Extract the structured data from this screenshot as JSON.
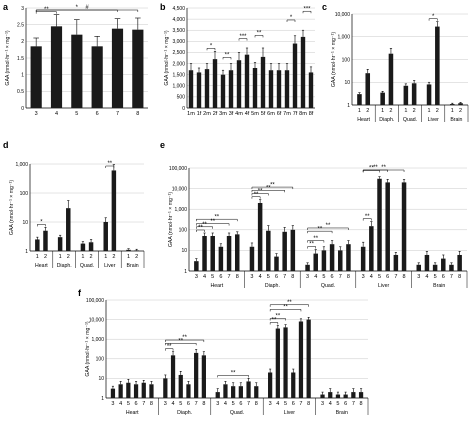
{
  "chart_data": [
    {
      "panel": "a",
      "type": "bar",
      "ylabel": "GAA (nmol·hr⁻¹ × mg⁻¹)",
      "scale": "linear",
      "ylim": [
        0,
        3
      ],
      "yticks": [
        "0",
        "0.5",
        "1",
        "1.5",
        "2",
        "2.5",
        "3"
      ],
      "categories": [
        "3",
        "4",
        "5",
        "6",
        "7",
        "8"
      ],
      "values": [
        1.85,
        2.45,
        2.2,
        1.85,
        2.38,
        2.35
      ],
      "errors": [
        0.25,
        0.35,
        0.45,
        0.3,
        0.3,
        0.35
      ],
      "annotations": [
        {
          "from": "3",
          "to": "4",
          "label": "**"
        },
        {
          "from": "3",
          "to": "7",
          "label": "*"
        },
        {
          "from": "3",
          "to": "8",
          "label": "#"
        }
      ]
    },
    {
      "panel": "b",
      "type": "bar",
      "ylabel": "GAA (nmol·hr⁻¹ × mg⁻¹)",
      "scale": "linear",
      "ylim": [
        0,
        4500
      ],
      "yticks": [
        "0",
        "500",
        "1,000",
        "1,500",
        "2,000",
        "2,500",
        "3,000",
        "3,500",
        "4,000",
        "4,500"
      ],
      "categories": [
        "1m",
        "1f",
        "2m",
        "2f",
        "3m",
        "3f",
        "4m",
        "4f",
        "5m",
        "5f",
        "6m",
        "6f",
        "7m",
        "7f",
        "8m",
        "8f"
      ],
      "values": [
        1700,
        1600,
        1750,
        2200,
        1500,
        1700,
        2150,
        2400,
        1800,
        2300,
        1700,
        1700,
        1700,
        2900,
        3200,
        1600
      ],
      "errors": [
        300,
        200,
        250,
        350,
        200,
        300,
        350,
        300,
        250,
        400,
        300,
        300,
        300,
        350,
        300,
        250
      ],
      "annotations": [
        {
          "from": "2m",
          "to": "2f",
          "label": "*"
        },
        {
          "from": "3m",
          "to": "3f",
          "label": "**"
        },
        {
          "from": "4m",
          "to": "4f",
          "label": "***"
        },
        {
          "from": "5m",
          "to": "5f",
          "label": "**"
        },
        {
          "from": "7m",
          "to": "7f",
          "label": "*"
        },
        {
          "from": "8m",
          "to": "8f",
          "label": "***"
        }
      ]
    },
    {
      "panel": "c",
      "type": "bar",
      "ylabel": "GAA (nmol·hr⁻¹ × mg⁻¹)",
      "scale": "log",
      "ylim": [
        1,
        10000
      ],
      "yticks": [
        "1",
        "10",
        "100",
        "1,000",
        "10,000"
      ],
      "groups": [
        "Heart",
        "Diaph.",
        "Quad.",
        "Liver",
        "Brain"
      ],
      "categories": [
        "1",
        "2"
      ],
      "values": [
        [
          3,
          25
        ],
        [
          3.5,
          180
        ],
        [
          7,
          9
        ],
        [
          8,
          2800
        ],
        [
          1.1,
          1.2
        ]
      ],
      "errors": [
        [
          0.5,
          12
        ],
        [
          0.5,
          130
        ],
        [
          1.5,
          3
        ],
        [
          2,
          1800
        ],
        [
          0.1,
          0.1
        ]
      ],
      "annotations": [
        {
          "group": "Liver",
          "from": "1",
          "to": "2",
          "label": "*"
        }
      ]
    },
    {
      "panel": "d",
      "type": "bar",
      "ylabel": "GAA (nmol·hr⁻¹ × mg⁻¹)",
      "scale": "log",
      "ylim": [
        1,
        1000
      ],
      "yticks": [
        "1",
        "10",
        "100",
        "1,000"
      ],
      "groups": [
        "Heart",
        "Diaph.",
        "Quad.",
        "Liver",
        "Brain"
      ],
      "categories": [
        "1",
        "2"
      ],
      "values": [
        [
          2.5,
          5
        ],
        [
          3,
          30
        ],
        [
          1.8,
          2
        ],
        [
          10,
          600
        ],
        [
          1.1,
          1.05
        ]
      ],
      "errors": [
        [
          0.5,
          1.5
        ],
        [
          0.5,
          25
        ],
        [
          0.3,
          0.5
        ],
        [
          4,
          350
        ],
        [
          0.1,
          0.1
        ]
      ],
      "annotations": [
        {
          "group": "Heart",
          "from": "1",
          "to": "2",
          "label": "*"
        },
        {
          "group": "Liver",
          "from": "1",
          "to": "2",
          "label": "**"
        }
      ]
    },
    {
      "panel": "e",
      "type": "bar",
      "ylabel": "GAA (nmol·hr⁻¹ × mg⁻¹)",
      "scale": "log",
      "ylim": [
        1,
        100000
      ],
      "yticks": [
        "1",
        "10",
        "100",
        "1,000",
        "10,000",
        "100,000"
      ],
      "groups": [
        "Heart",
        "Diaph.",
        "Quad.",
        "Liver",
        "Brain"
      ],
      "categories": [
        "3",
        "4",
        "5",
        "6",
        "7",
        "8"
      ],
      "values": [
        [
          3,
          50,
          50,
          15,
          50,
          60
        ],
        [
          15,
          2000,
          90,
          5,
          80,
          100
        ],
        [
          2,
          7,
          10,
          20,
          10,
          20
        ],
        [
          15,
          150,
          30000,
          20000,
          6,
          20000
        ],
        [
          2,
          6,
          2,
          4,
          2,
          6
        ]
      ],
      "errors": [
        [
          1,
          20,
          20,
          6,
          20,
          20
        ],
        [
          8,
          900,
          70,
          2,
          50,
          60
        ],
        [
          0.5,
          4,
          5,
          10,
          5,
          10
        ],
        [
          10,
          100,
          8000,
          8000,
          2,
          8000
        ],
        [
          0.5,
          3,
          0.5,
          2,
          0.5,
          3
        ]
      ],
      "annotations": [
        {
          "group": "Heart",
          "from": "3",
          "to": "4",
          "label": "**"
        },
        {
          "group": "Heart",
          "from": "3",
          "to": "5",
          "label": "**"
        },
        {
          "group": "Heart",
          "from": "3",
          "to": "7",
          "label": "**"
        },
        {
          "group": "Heart",
          "from": "3",
          "to": "8",
          "label": "**"
        },
        {
          "group": "Diaph.",
          "from": "3",
          "to": "4",
          "label": "**"
        },
        {
          "group": "Diaph.",
          "from": "3",
          "to": "5",
          "label": "**"
        },
        {
          "group": "Diaph.",
          "from": "3",
          "to": "7",
          "label": "**"
        },
        {
          "group": "Diaph.",
          "from": "3",
          "to": "8",
          "label": "**"
        },
        {
          "group": "Quad.",
          "from": "3",
          "to": "4",
          "label": "**"
        },
        {
          "group": "Quad.",
          "from": "3",
          "to": "5",
          "label": "**"
        },
        {
          "group": "Quad.",
          "from": "3",
          "to": "6",
          "label": "**"
        },
        {
          "group": "Quad.",
          "from": "3",
          "to": "8",
          "label": "**"
        },
        {
          "group": "Liver",
          "from": "3",
          "to": "4",
          "label": "**"
        },
        {
          "group": "Liver",
          "from": "3",
          "to": "5",
          "label": "**"
        },
        {
          "group": "Liver",
          "from": "3",
          "to": "6",
          "label": "**"
        },
        {
          "group": "Liver",
          "from": "3",
          "to": "8",
          "label": "**"
        }
      ]
    },
    {
      "panel": "f",
      "type": "bar",
      "ylabel": "GAA (nmol·hr⁻¹ × mg⁻¹)",
      "scale": "log",
      "ylim": [
        1,
        100000
      ],
      "yticks": [
        "1",
        "10",
        "100",
        "1,000",
        "10,000",
        "100,000"
      ],
      "groups": [
        "Heart",
        "Diaph.",
        "Quad.",
        "Liver",
        "Brain"
      ],
      "categories": [
        "3",
        "4",
        "5",
        "6",
        "7",
        "8"
      ],
      "values": [
        [
          3,
          5,
          6,
          5,
          6,
          5
        ],
        [
          10,
          150,
          15,
          5,
          200,
          150
        ],
        [
          2,
          5,
          4,
          4,
          7,
          4
        ],
        [
          20,
          3500,
          4000,
          20,
          8000,
          10000
        ],
        [
          1.5,
          2,
          1.5,
          1.5,
          2,
          2
        ]
      ],
      "errors": [
        [
          1,
          2,
          3,
          2,
          2,
          2
        ],
        [
          5,
          80,
          8,
          2,
          100,
          80
        ],
        [
          1,
          2,
          2,
          2,
          3,
          2
        ],
        [
          10,
          1500,
          1500,
          10,
          3000,
          3000
        ],
        [
          0.5,
          1,
          0.5,
          0.5,
          1,
          1
        ]
      ],
      "annotations": [
        {
          "group": "Diaph.",
          "from": "3",
          "to": "4",
          "label": "**"
        },
        {
          "group": "Diaph.",
          "from": "3",
          "to": "7",
          "label": "**"
        },
        {
          "group": "Diaph.",
          "from": "3",
          "to": "8",
          "label": "**"
        },
        {
          "group": "Quad.",
          "from": "3",
          "to": "7",
          "label": "**"
        },
        {
          "group": "Liver",
          "from": "3",
          "to": "4",
          "label": "**"
        },
        {
          "group": "Liver",
          "from": "3",
          "to": "5",
          "label": "**"
        },
        {
          "group": "Liver",
          "from": "3",
          "to": "7",
          "label": "**"
        },
        {
          "group": "Liver",
          "from": "3",
          "to": "8",
          "label": "**"
        }
      ]
    }
  ]
}
